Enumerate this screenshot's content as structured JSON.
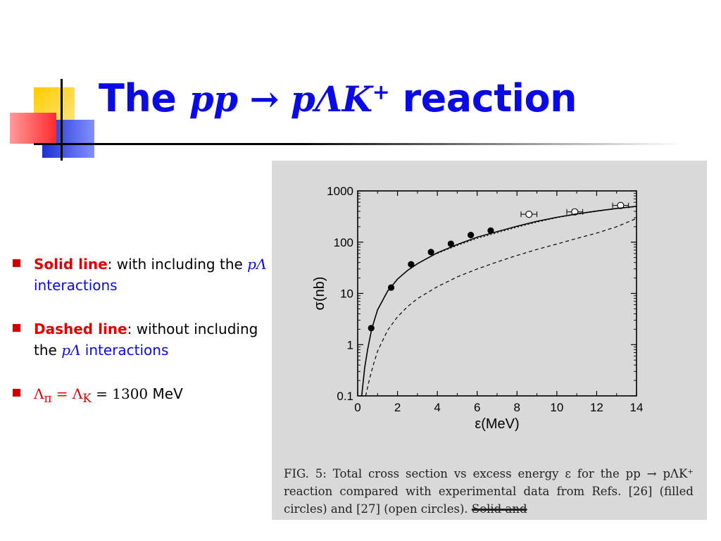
{
  "title": {
    "prefix": "The",
    "reaction": "pp → pΛK",
    "superscript": "+",
    "suffix": "reaction"
  },
  "bullets": [
    {
      "highlight": "Solid line",
      "text": ": with including the ",
      "math": "pΛ",
      "tail": " interactions"
    },
    {
      "highlight": "Dashed line",
      "text": ": without including the ",
      "math": "pΛ",
      "tail": " interactions"
    },
    {
      "math_prefix": "Λ",
      "sub_pi": "π",
      "equals1": " = Λ",
      "sub_K": "K",
      "equals2": " = 1300",
      "unit": " MeV"
    }
  ],
  "caption": {
    "text": "FIG. 5:  Total cross section vs excess energy ε for the pp → pΛK⁺ reaction compared with experimental data from Refs. [26] (filled circles) and [27] (open circles).",
    "struck": "Solid and"
  },
  "colors": {
    "title": "#0a0ae6",
    "highlight": "#e00000",
    "figure_bg": "#d9d9d9"
  },
  "chart_data": {
    "type": "scatter",
    "xlabel": "ε(MeV)",
    "ylabel": "σ(nb)",
    "xlim": [
      0,
      14
    ],
    "ylim": [
      0.1,
      1000
    ],
    "yscale": "log",
    "xticks": [
      0,
      2,
      4,
      6,
      8,
      10,
      12,
      14
    ],
    "yticks": [
      0.1,
      1,
      10,
      100,
      1000
    ],
    "ytick_labels": [
      "0.1",
      "1",
      "10",
      "100",
      "1000"
    ],
    "series": [
      {
        "marker": "filled-circle",
        "x": [
          0.68,
          1.68,
          2.68,
          3.68,
          4.68,
          5.68,
          6.68
        ],
        "y": [
          2.1,
          13,
          37,
          64,
          93,
          138,
          168
        ]
      },
      {
        "marker": "open-circle",
        "x": [
          8.6,
          10.9,
          13.2
        ],
        "y": [
          350,
          390,
          520
        ],
        "xerr": [
          0.4,
          0.4,
          0.4
        ]
      },
      {
        "line": "solid",
        "x": [
          0.2,
          0.35,
          0.5,
          0.7,
          1.0,
          1.5,
          2.0,
          2.5,
          3.0,
          4.0,
          5.0,
          6.0,
          7.0,
          8.0,
          9.0,
          10.0,
          11.0,
          12.0,
          13.0,
          14.0
        ],
        "y": [
          0.1,
          0.35,
          0.8,
          2.0,
          4.8,
          11,
          19,
          28,
          38,
          62,
          90,
          125,
          160,
          205,
          255,
          305,
          355,
          405,
          455,
          500
        ]
      },
      {
        "line": "dashed",
        "x": [
          0.4,
          0.6,
          0.8,
          1.0,
          1.5,
          2.0,
          2.5,
          3.0,
          4.0,
          5.0,
          6.0,
          7.0,
          8.0,
          9.0,
          10.0,
          11.0,
          12.0,
          13.0,
          14.0
        ],
        "y": [
          0.1,
          0.22,
          0.42,
          0.75,
          1.9,
          3.5,
          5.5,
          7.9,
          13.5,
          21,
          30,
          41,
          55,
          72,
          92,
          118,
          150,
          200,
          290
        ]
      },
      {
        "line": "dotted",
        "x": [
          4.0,
          5.0,
          6.0,
          7.0,
          8.0,
          9.0,
          10.0,
          11.0,
          12.0,
          13.0,
          14.0
        ],
        "y": [
          60,
          86,
          118,
          152,
          195,
          245,
          300,
          350,
          400,
          450,
          495
        ]
      }
    ]
  }
}
